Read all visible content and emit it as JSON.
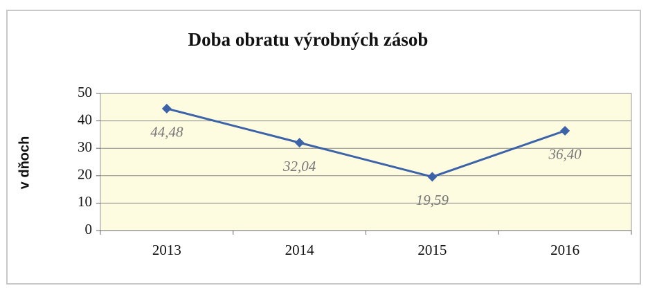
{
  "chart_data": {
    "type": "line",
    "title": "Doba obratu výrobných zásob",
    "y_label": "v dňoch",
    "categories": [
      "2013",
      "2014",
      "2015",
      "2016"
    ],
    "series": [
      {
        "name": "Doba obratu výrobných zásob",
        "color": "#3c62a8",
        "values": [
          44.48,
          32.04,
          19.59,
          36.4
        ],
        "value_labels": [
          "44,48",
          "32,04",
          "19,59",
          "36,40"
        ]
      }
    ],
    "ylim": [
      0,
      50
    ],
    "yticks": [
      0,
      10,
      20,
      30,
      40,
      50
    ],
    "grid": true,
    "plot_background": "#fdfbe0"
  }
}
